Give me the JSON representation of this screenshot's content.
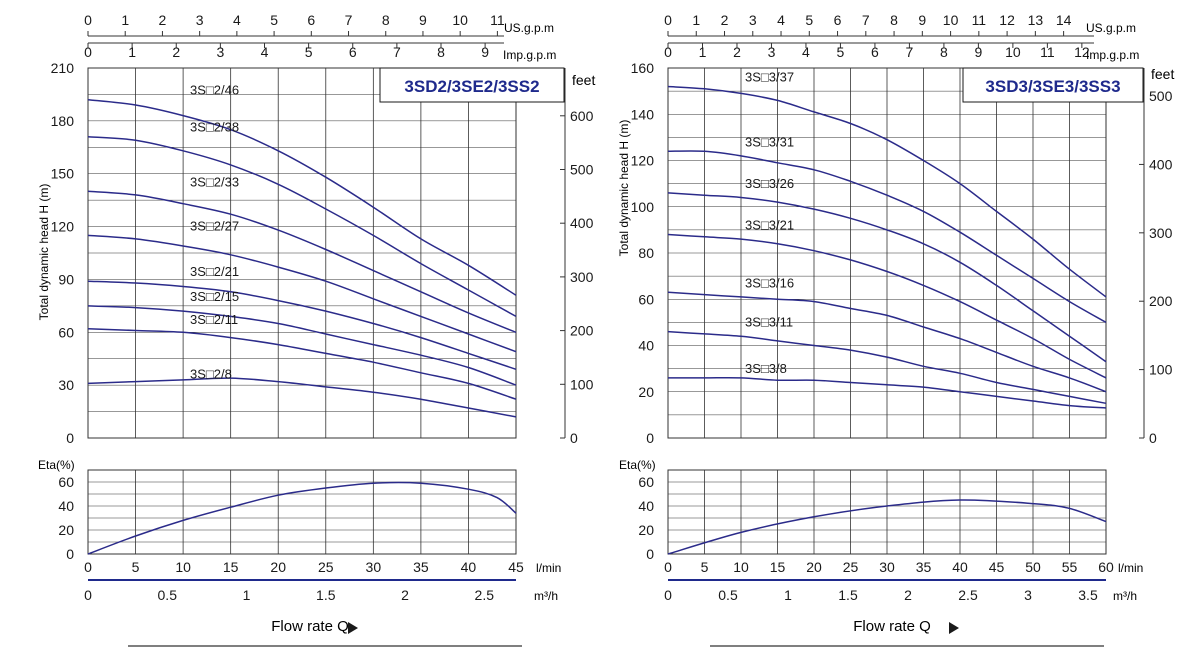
{
  "colors": {
    "curve": "#2b2b8a",
    "accent": "#1f2a8c",
    "grid": "#333333",
    "text": "#1a1a1a"
  },
  "shared": {
    "eta_label": "Eta(%)",
    "lmin_unit": "l/min",
    "m3h_unit": "m³/h",
    "flow_label": "Flow rate Q",
    "usgpm_unit": "US.g.p.m",
    "impgpm_unit": "Imp.g.p.m",
    "feet_unit": "feet",
    "head_axis_label": "Total dynamic head H (m)"
  },
  "charts": [
    {
      "title": "3SD2/3SE2/3SS2",
      "usgpm_ticks": [
        "0",
        "1",
        "2",
        "3",
        "4",
        "5",
        "6",
        "7",
        "8",
        "9",
        "10",
        "11"
      ],
      "impgpm_ticks": [
        "0",
        "1",
        "2",
        "3",
        "4",
        "5",
        "6",
        "7",
        "8",
        "9"
      ],
      "head_ticks": [
        "0",
        "30",
        "60",
        "90",
        "120",
        "150",
        "180",
        "210"
      ],
      "feet_ticks": [
        "0",
        "100",
        "200",
        "300",
        "400",
        "500",
        "600"
      ],
      "eta_ticks": [
        "0",
        "20",
        "40",
        "60"
      ],
      "lmin_ticks": [
        "0",
        "5",
        "10",
        "15",
        "20",
        "25",
        "30",
        "35",
        "40",
        "45"
      ],
      "m3h_ticks": [
        "0",
        "0.5",
        "1",
        "1.5",
        "2",
        "2.5"
      ],
      "model_labels": [
        "3S□2/46",
        "3S□2/38",
        "3S□2/33",
        "3S□2/27",
        "3S□2/21",
        "3S□2/15",
        "3S□2/11",
        "3S□2/8"
      ]
    },
    {
      "title": "3SD3/3SE3/3SS3",
      "usgpm_ticks": [
        "0",
        "1",
        "2",
        "3",
        "4",
        "5",
        "6",
        "7",
        "8",
        "9",
        "10",
        "11",
        "12",
        "13",
        "14"
      ],
      "impgpm_ticks": [
        "0",
        "1",
        "2",
        "3",
        "4",
        "5",
        "6",
        "7",
        "8",
        "9",
        "10",
        "11",
        "12"
      ],
      "head_ticks": [
        "0",
        "20",
        "40",
        "60",
        "80",
        "100",
        "120",
        "140",
        "160"
      ],
      "feet_ticks": [
        "0",
        "100",
        "200",
        "300",
        "400",
        "500"
      ],
      "eta_ticks": [
        "0",
        "20",
        "40",
        "60"
      ],
      "lmin_ticks": [
        "0",
        "5",
        "10",
        "15",
        "20",
        "25",
        "30",
        "35",
        "40",
        "45",
        "50",
        "55",
        "60"
      ],
      "m3h_ticks": [
        "0",
        "0.5",
        "1",
        "1.5",
        "2",
        "2.5",
        "3",
        "3.5"
      ],
      "model_labels": [
        "3S□3/37",
        "3S□3/31",
        "3S□3/26",
        "3S□3/21",
        "3S□3/16",
        "3S□3/11",
        "3S□3/8"
      ]
    }
  ],
  "chart_data": [
    {
      "type": "line",
      "title": "3SD2/3SE2/3SS2",
      "xlabel": "Flow rate Q",
      "x_unit": "l/min",
      "ylabel": "Total dynamic head H (m)",
      "xlim": [
        0,
        45
      ],
      "ylim": [
        0,
        210
      ],
      "grid": true,
      "x": [
        0,
        5,
        10,
        15,
        20,
        25,
        30,
        35,
        40,
        45
      ],
      "series": [
        {
          "name": "3S□2/46",
          "values": [
            192,
            189,
            183,
            175,
            163,
            148,
            131,
            113,
            98,
            81
          ]
        },
        {
          "name": "3S□2/38",
          "values": [
            171,
            169,
            163,
            155,
            144,
            130,
            115,
            99,
            84,
            69
          ]
        },
        {
          "name": "3S□2/33",
          "values": [
            140,
            138,
            133,
            127,
            118,
            107,
            95,
            83,
            71,
            60
          ]
        },
        {
          "name": "3S□2/27",
          "values": [
            115,
            113,
            109,
            104,
            97,
            89,
            79,
            69,
            59,
            49
          ]
        },
        {
          "name": "3S□2/21",
          "values": [
            89,
            88,
            86,
            83,
            78,
            72,
            65,
            57,
            48,
            39
          ]
        },
        {
          "name": "3S□2/15",
          "values": [
            75,
            74,
            72,
            69,
            65,
            59,
            53,
            47,
            40,
            30
          ]
        },
        {
          "name": "3S□2/11",
          "values": [
            62,
            61,
            60,
            57,
            53,
            48,
            43,
            37,
            31,
            22
          ]
        },
        {
          "name": "3S□2/8",
          "values": [
            31,
            32,
            33,
            34,
            32,
            29,
            26,
            22,
            17,
            12
          ]
        }
      ],
      "efficiency": {
        "ylabel": "Eta(%)",
        "ylim": [
          0,
          70
        ],
        "x": [
          0,
          5,
          10,
          15,
          20,
          25,
          30,
          35,
          40,
          43,
          45
        ],
        "values": [
          0,
          15,
          28,
          39,
          49,
          55,
          59,
          59,
          54,
          47,
          34
        ]
      },
      "secondary_axes": {
        "top_usgpm_max": 11.5,
        "top_impgpm_max": 9.7,
        "right_feet_max": 689,
        "bottom_m3h_max": 2.7
      }
    },
    {
      "type": "line",
      "title": "3SD3/3SE3/3SS3",
      "xlabel": "Flow rate Q",
      "x_unit": "l/min",
      "ylabel": "Total dynamic head H (m)",
      "xlim": [
        0,
        60
      ],
      "ylim": [
        0,
        160
      ],
      "grid": true,
      "x": [
        0,
        5,
        10,
        15,
        20,
        25,
        30,
        35,
        40,
        45,
        50,
        55,
        60
      ],
      "series": [
        {
          "name": "3S□3/37",
          "values": [
            152,
            151,
            149,
            146,
            141,
            136,
            129,
            120,
            110,
            98,
            86,
            73,
            61
          ]
        },
        {
          "name": "3S□3/31",
          "values": [
            124,
            124,
            122,
            119,
            116,
            111,
            105,
            98,
            89,
            79,
            69,
            59,
            50
          ]
        },
        {
          "name": "3S□3/26",
          "values": [
            106,
            105,
            104,
            102,
            99,
            95,
            90,
            84,
            76,
            66,
            55,
            44,
            33
          ]
        },
        {
          "name": "3S□3/21",
          "values": [
            88,
            87,
            86,
            84,
            81,
            77,
            72,
            66,
            59,
            51,
            43,
            34,
            26
          ]
        },
        {
          "name": "3S□3/16",
          "values": [
            63,
            62,
            61,
            60,
            59,
            56,
            53,
            48,
            43,
            37,
            31,
            26,
            20
          ]
        },
        {
          "name": "3S□3/11",
          "values": [
            46,
            45,
            44,
            42,
            40,
            38,
            35,
            31,
            28,
            24,
            21,
            18,
            15
          ]
        },
        {
          "name": "3S□3/8",
          "values": [
            26,
            26,
            26,
            25,
            25,
            24,
            23,
            22,
            20,
            18,
            16,
            14,
            13
          ]
        }
      ],
      "efficiency": {
        "ylabel": "Eta(%)",
        "ylim": [
          0,
          70
        ],
        "x": [
          0,
          10,
          20,
          30,
          40,
          50,
          55,
          60
        ],
        "values": [
          0,
          18,
          31,
          40,
          45,
          42,
          38,
          27
        ]
      },
      "secondary_axes": {
        "top_usgpm_max": 15.5,
        "top_impgpm_max": 12.7,
        "right_feet_max": 541,
        "bottom_m3h_max": 3.65
      }
    }
  ]
}
